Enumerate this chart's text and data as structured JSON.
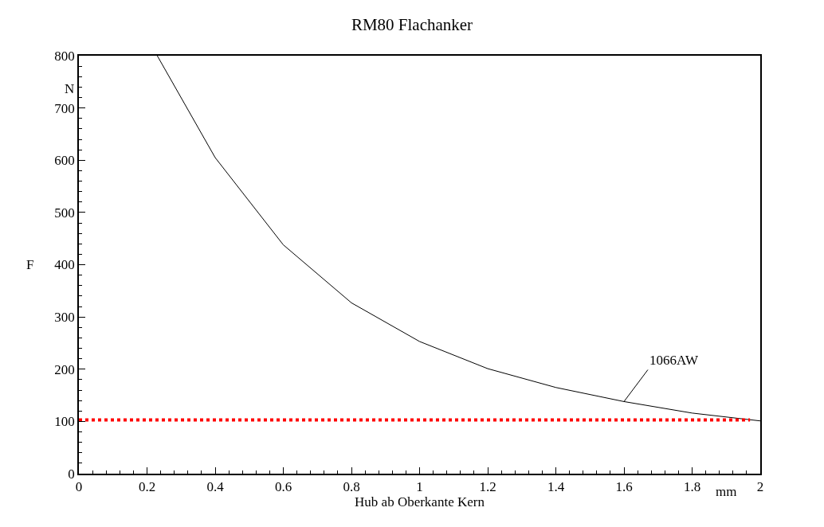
{
  "chart_data": {
    "type": "line",
    "title": "RM80 Flachanker",
    "xlabel": "Hub ab Oberkante Kern",
    "ylabel": "F",
    "series": [
      {
        "name": "1066AW",
        "color": "#000000",
        "x": [
          0.23,
          0.4,
          0.6,
          0.8,
          1.0,
          1.2,
          1.4,
          1.6,
          1.8,
          2.0
        ],
        "values": [
          800,
          605,
          438,
          327,
          253,
          201,
          165,
          138,
          116,
          101
        ]
      },
      {
        "color": "#ff0000",
        "line_style": "dotted",
        "x": [
          0,
          1.97
        ],
        "values": [
          103,
          103
        ]
      }
    ],
    "annotations": [
      "N",
      "mm"
    ],
    "xlim": [
      0,
      2
    ],
    "xticks": [
      0,
      0.2,
      0.4,
      0.6,
      0.8,
      1,
      1.2,
      1.4,
      1.6,
      1.8,
      2
    ],
    "ylim": [
      0,
      800
    ],
    "yticks": [
      0,
      100,
      200,
      300,
      400,
      500,
      600,
      700,
      800
    ],
    "legend": false,
    "marker": "none"
  }
}
